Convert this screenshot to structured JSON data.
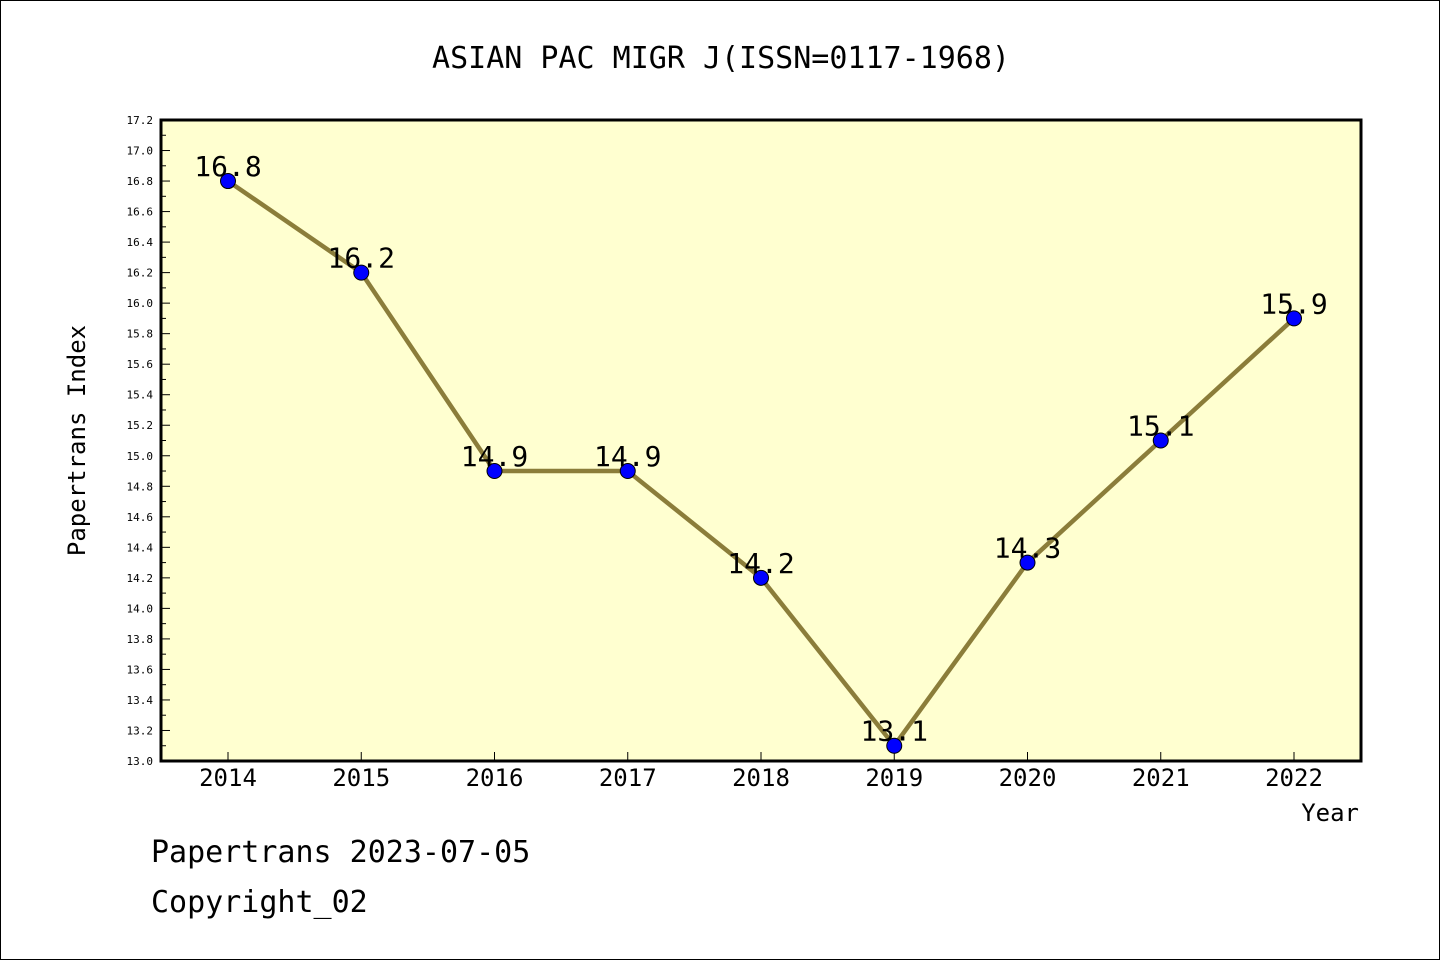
{
  "chart_data": {
    "type": "line",
    "title": "ASIAN PAC MIGR J(ISSN=0117-1968)",
    "xlabel": "Year",
    "ylabel": "Papertrans Index",
    "categories": [
      "2014",
      "2015",
      "2016",
      "2017",
      "2018",
      "2019",
      "2020",
      "2021",
      "2022"
    ],
    "series": [
      {
        "values": [
          16.8,
          16.2,
          14.9,
          14.9,
          14.2,
          13.1,
          14.3,
          15.1,
          15.9
        ]
      }
    ],
    "data_labels": [
      "16.8",
      "16.2",
      "14.9",
      "14.9",
      "14.2",
      "13.1",
      "14.3",
      "15.1",
      "15.9"
    ],
    "ylim": [
      13.0,
      17.2
    ],
    "yticks": [
      "13.0",
      "13.2",
      "13.4",
      "13.6",
      "13.8",
      "14.0",
      "14.2",
      "14.4",
      "14.6",
      "14.8",
      "15.0",
      "15.2",
      "15.4",
      "15.6",
      "15.8",
      "16.0",
      "16.2",
      "16.4",
      "16.6",
      "16.8",
      "17.0",
      "17.2"
    ],
    "grid": false,
    "colors": {
      "plot_background": "#ffffd0",
      "line": "#8b7d3a",
      "marker": "#0000ff"
    }
  },
  "footer": {
    "line1": "Papertrans 2023-07-05",
    "line2": "Copyright_02"
  }
}
